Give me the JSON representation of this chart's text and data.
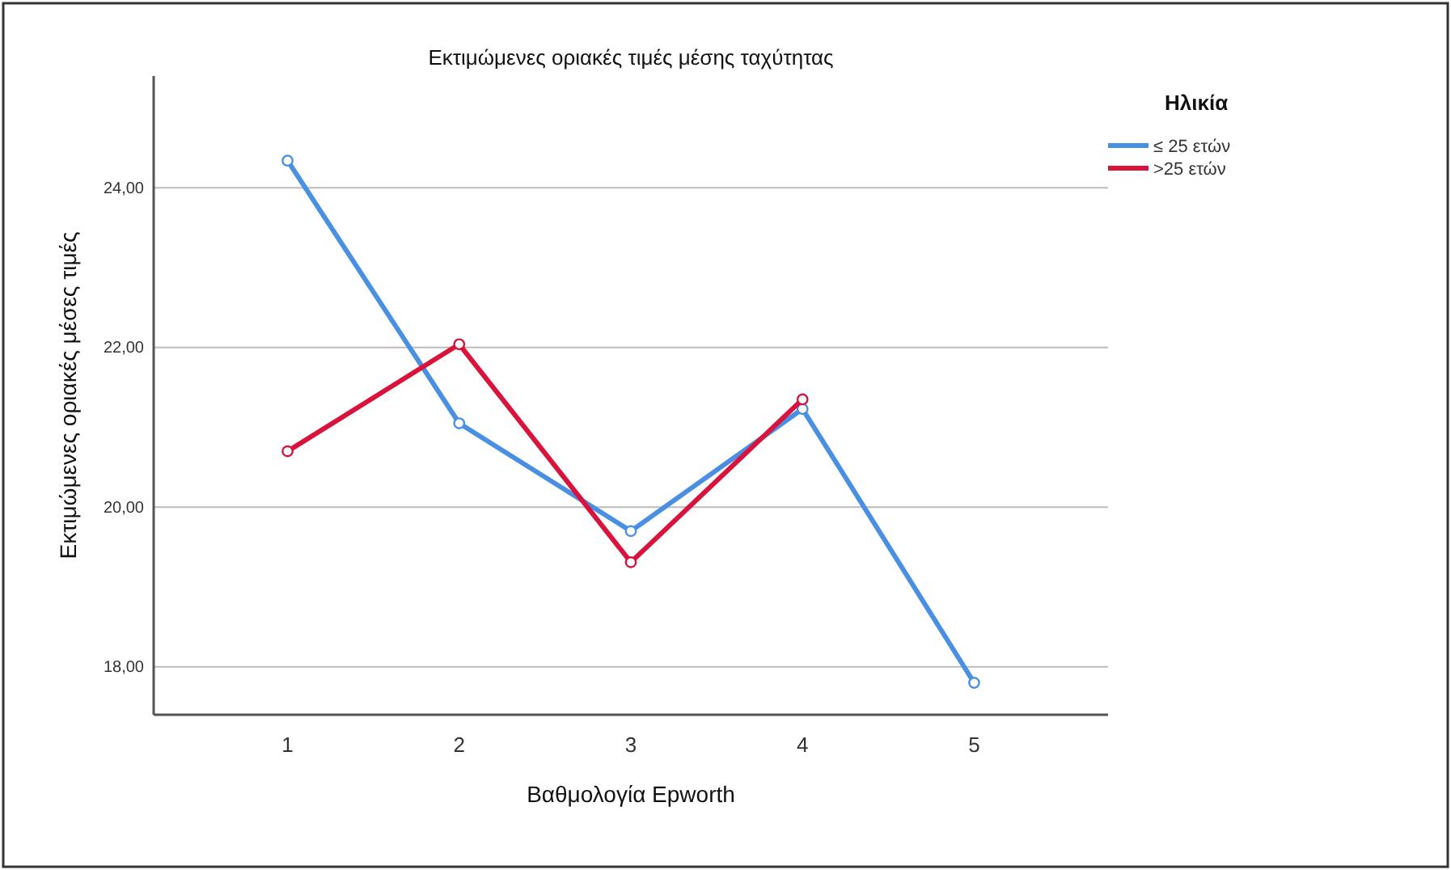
{
  "chart_data": {
    "type": "line",
    "title": "Εκτιμώμενες οριακές τιμές μέσης ταχύτητας",
    "xlabel": "Βαθμολογία Epworth",
    "ylabel": "Εκτιμώμενες οριακές μέσες τιμές",
    "legend_title": "Ηλικία",
    "categories": [
      "1",
      "2",
      "3",
      "4",
      "5"
    ],
    "series": [
      {
        "name": "≤ 25 ετών",
        "color": "#4a90e2",
        "values": [
          24.34,
          21.05,
          19.7,
          21.23,
          17.8
        ]
      },
      {
        "name": ">25 ετών",
        "color": "#d8143c",
        "values": [
          20.7,
          22.04,
          19.31,
          21.35,
          null
        ]
      }
    ],
    "ylim": [
      17.4,
      25.4
    ],
    "yticks": [
      {
        "value": 18,
        "label": "18,00"
      },
      {
        "value": 20,
        "label": "20,00"
      },
      {
        "value": 22,
        "label": "22,00"
      },
      {
        "value": 24,
        "label": "24,00"
      }
    ],
    "grid": "y",
    "legend": "top right",
    "marker": "circle",
    "line_style": "solid"
  }
}
